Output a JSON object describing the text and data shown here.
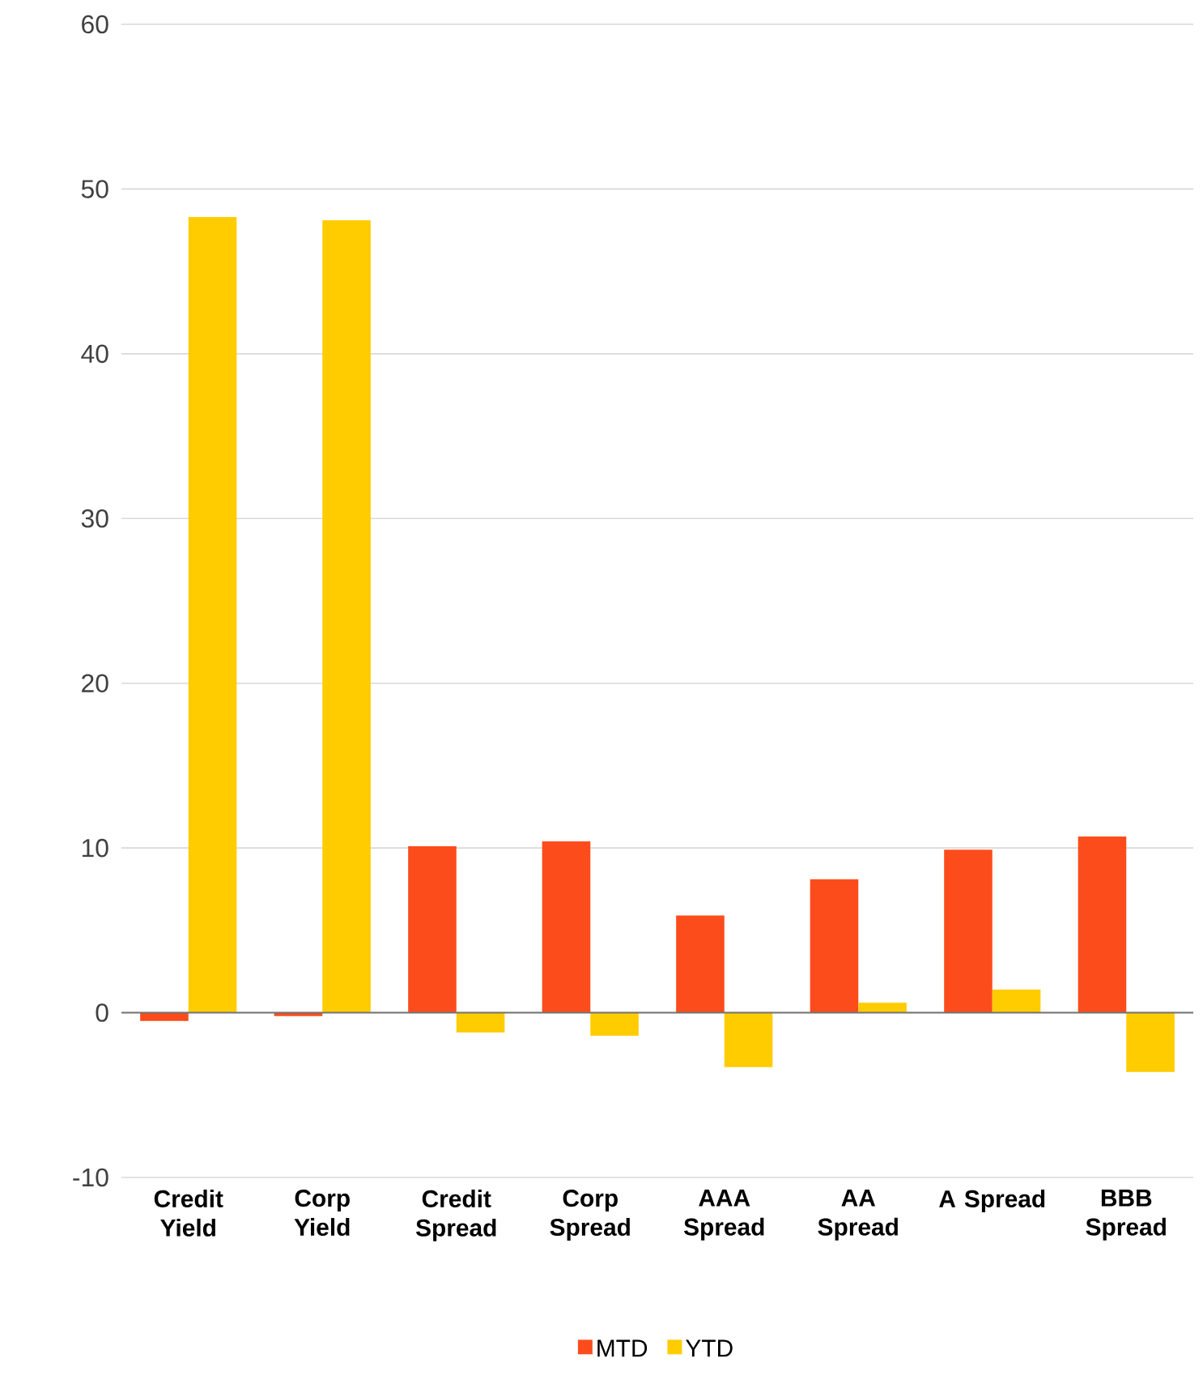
{
  "chart_data": {
    "type": "bar",
    "categories": [
      "Credit Yield",
      "Corp Yield",
      "Credit Spread",
      "Corp Spread",
      "AAA Spread",
      "AA Spread",
      "A Spread",
      "BBB Spread"
    ],
    "series": [
      {
        "name": "MTD",
        "color": "#fc4c1c",
        "values": [
          -0.5,
          -0.2,
          10.1,
          10.4,
          5.9,
          8.1,
          9.9,
          10.7
        ]
      },
      {
        "name": "YTD",
        "color": "#ffcc00",
        "values": [
          48.3,
          48.1,
          -1.2,
          -1.4,
          -3.3,
          0.6,
          1.4,
          -3.6
        ]
      }
    ],
    "ylim": [
      -10,
      60
    ],
    "yticks": [
      -10,
      0,
      10,
      20,
      30,
      40,
      50,
      60
    ],
    "grid": "y",
    "legend": "bottom"
  }
}
